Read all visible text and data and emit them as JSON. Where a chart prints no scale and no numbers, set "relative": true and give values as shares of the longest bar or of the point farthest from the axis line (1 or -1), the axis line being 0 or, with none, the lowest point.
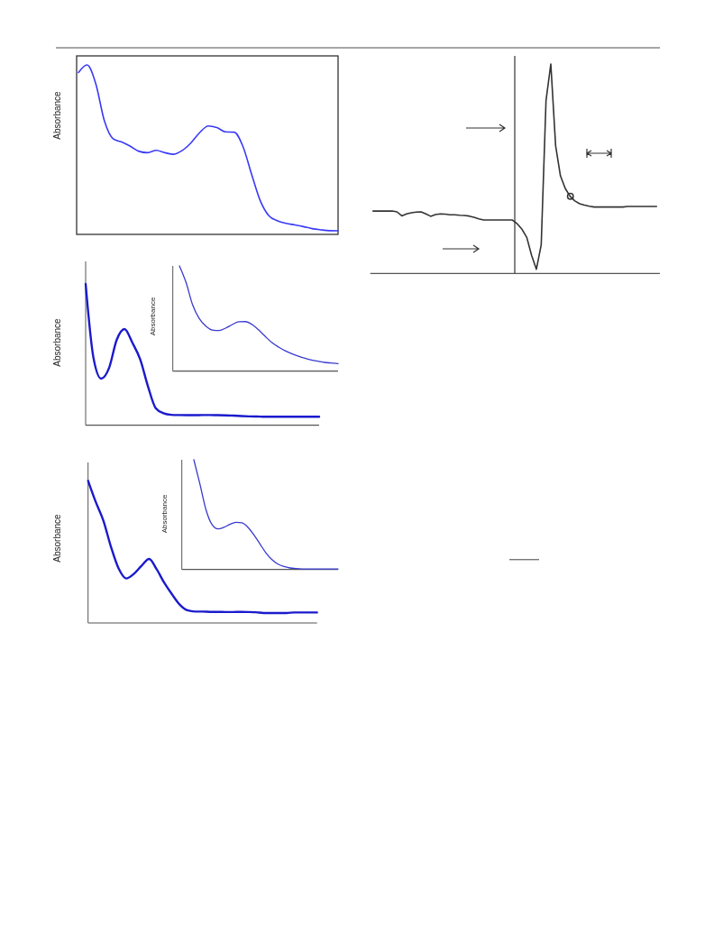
{
  "chart_data": [
    {
      "type": "line",
      "relative": true,
      "ylabel": "Absorbance",
      "categories": [
        null,
        null,
        null,
        null,
        null,
        null,
        null,
        null,
        null,
        null,
        null,
        null,
        null,
        null,
        null,
        null,
        null,
        null,
        null,
        null,
        null,
        null,
        null,
        null,
        null,
        null,
        null,
        null,
        null,
        null,
        null
      ],
      "series": [
        {
          "color": "#3a3af5",
          "values": [
            0.955,
            1.0,
            0.89,
            0.67,
            0.565,
            0.545,
            0.52,
            0.49,
            0.482,
            0.496,
            0.482,
            0.473,
            0.495,
            0.54,
            0.6,
            0.64,
            0.63,
            0.605,
            0.603,
            0.52,
            0.357,
            0.2,
            0.11,
            0.08,
            0.065,
            0.056,
            0.046,
            0.034,
            0.027,
            0.022,
            0.021
          ]
        }
      ]
    },
    {
      "type": "line",
      "relative": true,
      "categories": [
        null,
        null,
        null,
        null,
        null,
        null,
        null,
        null,
        null,
        null,
        null,
        null,
        null,
        null,
        null,
        null,
        null,
        null,
        null,
        null,
        null,
        null,
        null,
        null,
        null,
        null,
        null,
        null,
        null,
        null,
        null,
        null,
        null,
        null,
        null,
        null,
        null,
        null,
        null,
        null,
        null,
        null,
        null,
        null,
        null,
        null,
        null,
        null,
        null,
        null,
        null,
        null,
        null,
        null,
        null,
        null,
        null,
        null,
        null,
        null
      ],
      "series": [
        {
          "color": "#333333",
          "values": [
            0.298,
            0.298,
            0.298,
            0.298,
            0.298,
            0.294,
            0.275,
            0.284,
            0.29,
            0.293,
            0.294,
            0.284,
            0.273,
            0.281,
            0.284,
            0.283,
            0.28,
            0.28,
            0.278,
            0.277,
            0.274,
            0.268,
            0.261,
            0.255,
            0.255,
            0.255,
            0.255,
            0.255,
            0.255,
            0.255,
            0.237,
            0.211,
            0.172,
            0.086,
            0.02,
            0.136,
            0.825,
            1.0,
            0.61,
            0.466,
            0.406,
            0.369,
            0.346,
            0.333,
            0.326,
            0.321,
            0.317,
            0.317,
            0.317,
            0.317,
            0.317,
            0.317,
            0.317,
            0.32,
            0.32,
            0.32,
            0.32,
            0.32,
            0.32,
            0.32
          ]
        }
      ]
    },
    {
      "type": "line",
      "relative": true,
      "ylabel": "Absorbance",
      "categories": [
        null,
        null,
        null,
        null,
        null,
        null,
        null,
        null,
        null,
        null,
        null,
        null,
        null,
        null,
        null,
        null,
        null,
        null,
        null,
        null,
        null,
        null,
        null,
        null,
        null,
        null,
        null,
        null,
        null,
        null,
        null
      ],
      "series": [
        {
          "color": "#1a1acc",
          "values": [
            1.0,
            0.479,
            0.33,
            0.404,
            0.606,
            0.681,
            0.585,
            0.468,
            0.277,
            0.121,
            0.085,
            0.074,
            0.072,
            0.071,
            0.071,
            0.072,
            0.072,
            0.071,
            0.07,
            0.068,
            0.065,
            0.063,
            0.062,
            0.06,
            0.06,
            0.06,
            0.06,
            0.06,
            0.06,
            0.06,
            0.06
          ]
        }
      ]
    },
    {
      "type": "line",
      "relative": true,
      "ylabel": "Absorbance",
      "categories": [
        null,
        null,
        null,
        null,
        null,
        null,
        null,
        null,
        null,
        null,
        null,
        null,
        null,
        null,
        null,
        null,
        null,
        null,
        null,
        null,
        null,
        null,
        null,
        null,
        null,
        null
      ],
      "series": [
        {
          "color": "#3a3ad0",
          "values": [
            null,
            1.0,
            0.843,
            0.629,
            0.5,
            0.429,
            0.391,
            0.386,
            0.409,
            0.443,
            0.469,
            0.471,
            0.443,
            0.391,
            0.329,
            0.271,
            0.229,
            0.194,
            0.166,
            0.143,
            0.123,
            0.106,
            0.094,
            0.083,
            0.077,
            0.071
          ]
        }
      ]
    },
    {
      "type": "line",
      "relative": true,
      "ylabel": "Absorbance",
      "categories": [
        null,
        null,
        null,
        null,
        null,
        null,
        null,
        null,
        null,
        null,
        null,
        null,
        null,
        null,
        null,
        null,
        null,
        null,
        null,
        null,
        null,
        null,
        null,
        null,
        null,
        null,
        null,
        null,
        null,
        null,
        null
      ],
      "series": [
        {
          "color": "#1a1acc",
          "values": [
            1.0,
            0.852,
            0.721,
            0.535,
            0.383,
            0.313,
            0.345,
            0.402,
            0.45,
            0.376,
            0.281,
            0.201,
            0.129,
            0.089,
            0.08,
            0.08,
            0.078,
            0.078,
            0.077,
            0.077,
            0.078,
            0.077,
            0.075,
            0.07,
            0.07,
            0.07,
            0.07,
            0.074,
            0.074,
            0.074,
            0.074
          ]
        }
      ]
    },
    {
      "type": "line",
      "relative": true,
      "ylabel": "Absorbance",
      "categories": [
        null,
        null,
        null,
        null,
        null,
        null,
        null,
        null,
        null,
        null,
        null,
        null,
        null,
        null,
        null,
        null,
        null,
        null,
        null,
        null,
        null,
        null,
        null,
        null,
        null,
        null,
        null
      ],
      "series": [
        {
          "color": "#3a3ad0",
          "values": [
            null,
            null,
            1.0,
            0.781,
            0.548,
            0.411,
            0.37,
            0.384,
            0.411,
            0.43,
            0.425,
            0.384,
            0.315,
            0.233,
            0.151,
            0.09,
            0.049,
            0.027,
            0.014,
            0.008,
            0.005,
            0.005,
            0.005,
            0.005,
            0.005,
            0.005,
            0.005
          ]
        }
      ]
    }
  ]
}
